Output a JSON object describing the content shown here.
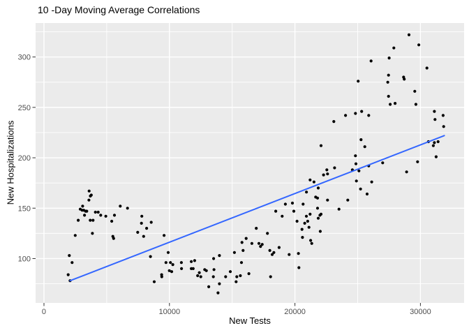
{
  "chart_data": {
    "type": "scatter",
    "title": "10 -Day Moving Average Correlations",
    "xlabel": "New Tests",
    "ylabel": "New Hospitalizations",
    "legend": "none",
    "grid": true,
    "x_major_ticks": [
      0,
      10000,
      20000,
      30000
    ],
    "x_minor_ticks": [
      5000,
      15000,
      25000
    ],
    "y_major_ticks": [
      100,
      150,
      200,
      250,
      300
    ],
    "y_minor_ticks": [
      75,
      125,
      175,
      225,
      275,
      325
    ],
    "xlim": [
      -667,
      33482
    ],
    "ylim": [
      56,
      333.7
    ],
    "colors": {
      "panel_bg": "#EBEBEB",
      "grid": "#FFFFFF",
      "point": "#000000",
      "trend": "#3366FF",
      "axis_text": "#4D4D4D",
      "tick_mark": "#333333",
      "title_text": "#000000"
    },
    "trend_line": {
      "type": "linear",
      "x_start": 2080,
      "y_start": 78,
      "x_end": 31900,
      "y_end": 222,
      "color": "#3366FF"
    },
    "points": [
      [
        1930,
        84
      ],
      [
        2020,
        103
      ],
      [
        2080,
        78
      ],
      [
        2240,
        96
      ],
      [
        2490,
        123
      ],
      [
        2730,
        138
      ],
      [
        2890,
        149
      ],
      [
        3040,
        148
      ],
      [
        3080,
        152
      ],
      [
        3170,
        148
      ],
      [
        3230,
        143
      ],
      [
        3320,
        147
      ],
      [
        3410,
        147
      ],
      [
        3580,
        158
      ],
      [
        3600,
        167
      ],
      [
        3690,
        138
      ],
      [
        3700,
        162
      ],
      [
        3770,
        163
      ],
      [
        3860,
        125
      ],
      [
        3910,
        138
      ],
      [
        4100,
        146
      ],
      [
        4320,
        146
      ],
      [
        4520,
        143
      ],
      [
        4930,
        142
      ],
      [
        5400,
        137
      ],
      [
        5490,
        122
      ],
      [
        5550,
        120
      ],
      [
        5620,
        143
      ],
      [
        6080,
        152
      ],
      [
        6660,
        150
      ],
      [
        7470,
        126
      ],
      [
        7770,
        135
      ],
      [
        7800,
        142
      ],
      [
        7940,
        122
      ],
      [
        8180,
        130
      ],
      [
        8490,
        102
      ],
      [
        8550,
        136
      ],
      [
        8790,
        77
      ],
      [
        9380,
        84
      ],
      [
        9390,
        82
      ],
      [
        9570,
        123
      ],
      [
        9720,
        96
      ],
      [
        9900,
        106
      ],
      [
        9990,
        88
      ],
      [
        10080,
        96
      ],
      [
        10180,
        87
      ],
      [
        10270,
        94
      ],
      [
        10950,
        96
      ],
      [
        10960,
        90
      ],
      [
        11740,
        97
      ],
      [
        11740,
        90
      ],
      [
        11890,
        90
      ],
      [
        12010,
        98
      ],
      [
        12250,
        83
      ],
      [
        12380,
        86
      ],
      [
        12500,
        82
      ],
      [
        12810,
        89
      ],
      [
        12940,
        88
      ],
      [
        13130,
        72
      ],
      [
        13500,
        82
      ],
      [
        13520,
        100
      ],
      [
        13550,
        89
      ],
      [
        13870,
        66
      ],
      [
        13980,
        75
      ],
      [
        13980,
        103
      ],
      [
        14480,
        82
      ],
      [
        14850,
        87
      ],
      [
        15180,
        106
      ],
      [
        15310,
        77
      ],
      [
        15370,
        82
      ],
      [
        15650,
        83
      ],
      [
        15740,
        96
      ],
      [
        15780,
        116
      ],
      [
        15870,
        108
      ],
      [
        16110,
        120
      ],
      [
        16330,
        85
      ],
      [
        16570,
        115
      ],
      [
        16920,
        130
      ],
      [
        17130,
        115
      ],
      [
        17260,
        112
      ],
      [
        17390,
        114
      ],
      [
        17810,
        125
      ],
      [
        18000,
        108
      ],
      [
        18060,
        82
      ],
      [
        18190,
        104
      ],
      [
        18320,
        106
      ],
      [
        18470,
        147
      ],
      [
        18740,
        111
      ],
      [
        18980,
        142
      ],
      [
        19240,
        154
      ],
      [
        19540,
        104
      ],
      [
        19800,
        155
      ],
      [
        19910,
        147
      ],
      [
        20170,
        137
      ],
      [
        20280,
        105
      ],
      [
        20320,
        91
      ],
      [
        20560,
        129
      ],
      [
        20600,
        121
      ],
      [
        20650,
        154
      ],
      [
        20780,
        135
      ],
      [
        20910,
        142
      ],
      [
        20920,
        166
      ],
      [
        21020,
        137
      ],
      [
        21120,
        131
      ],
      [
        21210,
        144
      ],
      [
        21210,
        178
      ],
      [
        21250,
        118
      ],
      [
        21340,
        115
      ],
      [
        21520,
        176
      ],
      [
        21650,
        161
      ],
      [
        21800,
        160
      ],
      [
        21800,
        150
      ],
      [
        21860,
        140
      ],
      [
        21860,
        170
      ],
      [
        21990,
        143
      ],
      [
        22020,
        127
      ],
      [
        22080,
        144
      ],
      [
        22080,
        212
      ],
      [
        22280,
        183
      ],
      [
        22540,
        188
      ],
      [
        22600,
        184
      ],
      [
        22600,
        158
      ],
      [
        23100,
        236
      ],
      [
        23160,
        190
      ],
      [
        23510,
        149
      ],
      [
        24030,
        242
      ],
      [
        24210,
        158
      ],
      [
        24580,
        188
      ],
      [
        24820,
        202
      ],
      [
        24820,
        244
      ],
      [
        24860,
        194
      ],
      [
        24900,
        177
      ],
      [
        25040,
        276
      ],
      [
        25100,
        187
      ],
      [
        25230,
        169
      ],
      [
        25270,
        218
      ],
      [
        25320,
        246
      ],
      [
        25570,
        211
      ],
      [
        25750,
        164
      ],
      [
        25880,
        192
      ],
      [
        25880,
        242
      ],
      [
        26070,
        296
      ],
      [
        26120,
        176
      ],
      [
        26990,
        195
      ],
      [
        27400,
        275
      ],
      [
        27460,
        261
      ],
      [
        27460,
        282
      ],
      [
        27510,
        299
      ],
      [
        27590,
        253
      ],
      [
        27880,
        309
      ],
      [
        27980,
        254
      ],
      [
        28660,
        280
      ],
      [
        28710,
        278
      ],
      [
        28900,
        186
      ],
      [
        29090,
        322
      ],
      [
        29550,
        266
      ],
      [
        29640,
        253
      ],
      [
        29770,
        196
      ],
      [
        29870,
        312
      ],
      [
        30520,
        289
      ],
      [
        30640,
        216
      ],
      [
        31030,
        212
      ],
      [
        31110,
        215
      ],
      [
        31110,
        246
      ],
      [
        31160,
        238
      ],
      [
        31250,
        201
      ],
      [
        31410,
        216
      ],
      [
        31810,
        242
      ],
      [
        31850,
        231
      ]
    ]
  }
}
